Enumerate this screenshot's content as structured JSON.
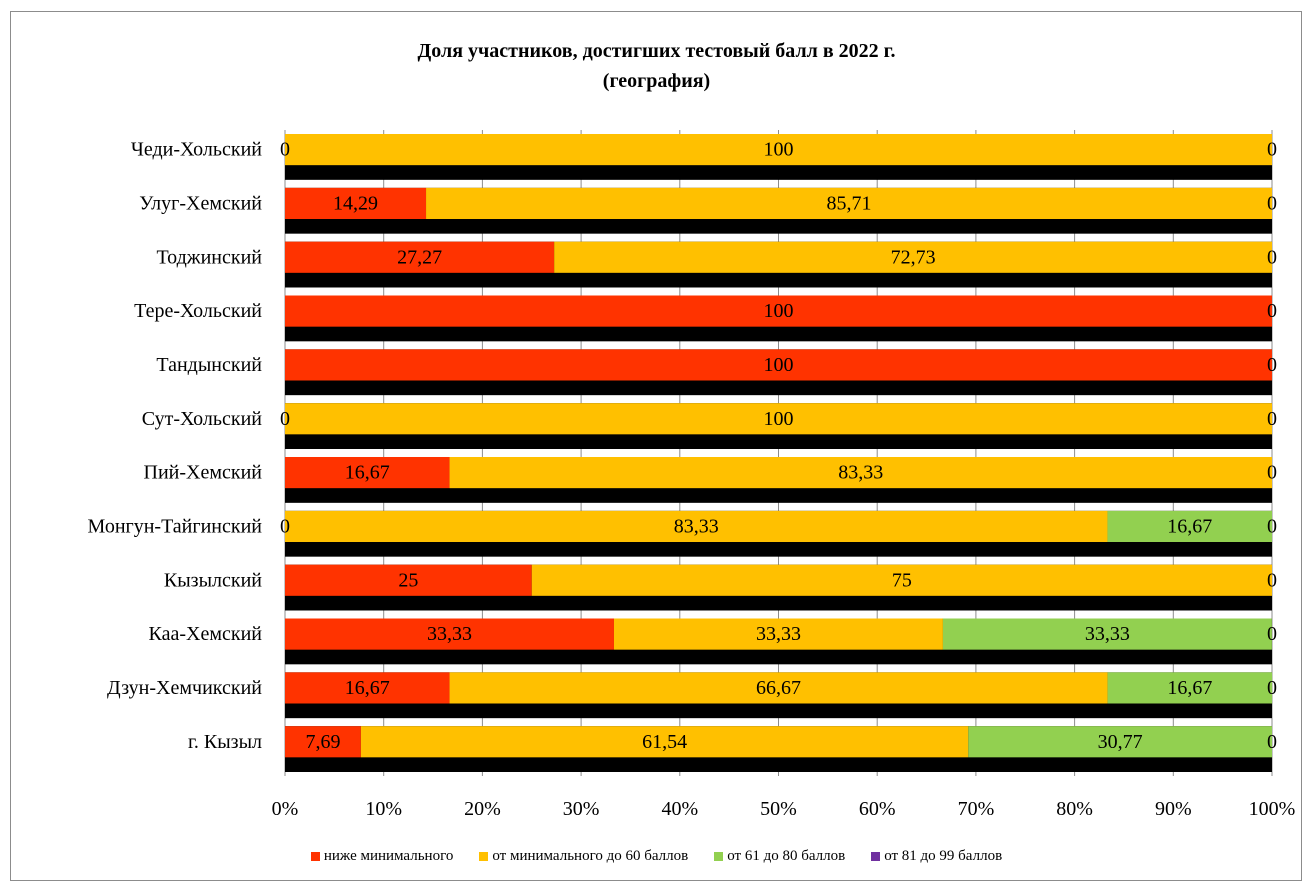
{
  "chart_data": {
    "type": "bar",
    "orientation": "horizontal",
    "stacked": "percent",
    "title_line1": "Доля участников, достигших тестовый балл в 2022 г.",
    "title_line2": "(география)",
    "categories": [
      "Чеди-Хольский",
      "Улуг-Хемский",
      "Тоджинский",
      "Тере-Хольский",
      "Тандынский",
      "Сут-Хольский",
      "Пий-Хемский",
      "Монгун-Тайгинский",
      "Кызылский",
      "Каа-Хемский",
      "Дзун-Хемчикский",
      "г. Кызыл"
    ],
    "series": [
      {
        "name": "ниже минимального",
        "color": "#ff3300",
        "values": [
          0,
          14.29,
          27.27,
          100,
          100,
          0,
          16.67,
          0,
          25,
          33.33,
          16.67,
          7.69
        ]
      },
      {
        "name": "от минимального до 60 баллов",
        "color": "#ffc000",
        "values": [
          100,
          85.71,
          72.73,
          0,
          0,
          100,
          83.33,
          83.33,
          75,
          33.33,
          66.67,
          61.54
        ]
      },
      {
        "name": "от 61 до 80 баллов",
        "color": "#92d050",
        "values": [
          0,
          0,
          0,
          0,
          0,
          0,
          0,
          16.67,
          0,
          33.33,
          16.67,
          30.77
        ]
      },
      {
        "name": "от 81 до 99 баллов",
        "color": "#7030a0",
        "values": [
          0,
          0,
          0,
          0,
          0,
          0,
          0,
          0,
          0,
          0,
          0,
          0
        ]
      }
    ],
    "data_labels": [
      [
        "0",
        "100",
        "0"
      ],
      [
        "14,29",
        "85,71",
        "0"
      ],
      [
        "27,27",
        "72,73",
        "0"
      ],
      [
        "100",
        "0"
      ],
      [
        "100",
        "0"
      ],
      [
        "0",
        "100",
        "0"
      ],
      [
        "16,67",
        "83,33",
        "0"
      ],
      [
        "0",
        "83,33",
        "16,67",
        "0"
      ],
      [
        "25",
        "75",
        "0"
      ],
      [
        "33,33",
        "33,33",
        "33,33",
        "0"
      ],
      [
        "16,67",
        "66,67",
        "16,67",
        "0"
      ],
      [
        "7,69",
        "61,54",
        "30,77",
        "0"
      ]
    ],
    "x_ticks": [
      "0%",
      "10%",
      "20%",
      "30%",
      "40%",
      "50%",
      "60%",
      "70%",
      "80%",
      "90%",
      "100%"
    ],
    "xlim": [
      0,
      100
    ],
    "grid": true,
    "legend_position": "bottom"
  }
}
